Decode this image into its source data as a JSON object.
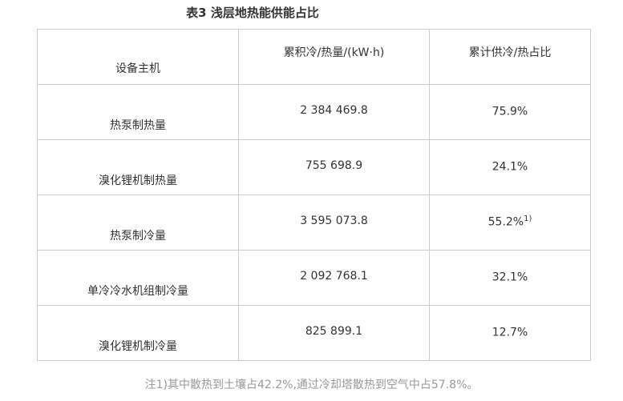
{
  "title": "表3 浅层地热能供能占比",
  "table": {
    "headers": [
      "设备主机",
      "累积冷/热量/(kW·h)",
      "累计供冷/热占比"
    ],
    "rows": [
      {
        "name": "热泵制热量",
        "amount": "2 384 469.8",
        "share": "75.9%",
        "sup": ""
      },
      {
        "name": "溴化锂机制热量",
        "amount": "755 698.9",
        "share": "24.1%",
        "sup": ""
      },
      {
        "name": "热泵制冷量",
        "amount": "3 595 073.8",
        "share": "55.2%",
        "sup": "1)"
      },
      {
        "name": "单冷冷水机组制冷量",
        "amount": "2 092 768.1",
        "share": "32.1%",
        "sup": ""
      },
      {
        "name": "溴化锂机制冷量",
        "amount": "825 899.1",
        "share": "12.7%",
        "sup": ""
      }
    ]
  },
  "note": "注1)其中散热到土壤占42.2%,通过冷却塔散热到空气中占57.8%。"
}
